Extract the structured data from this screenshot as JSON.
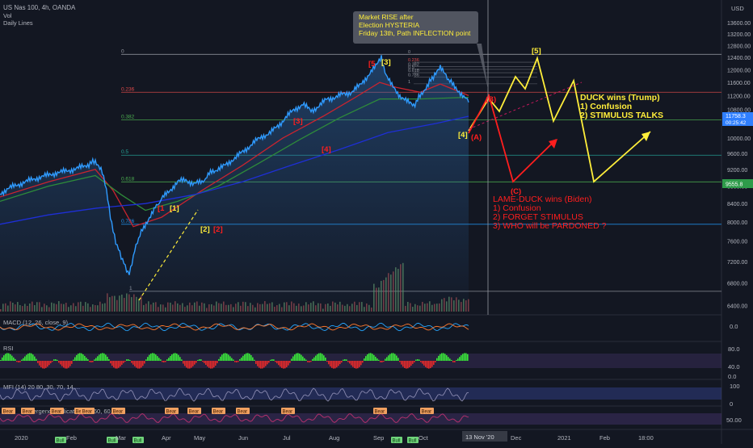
{
  "header": {
    "symbol": "US Nas 100, 4h, OANDA",
    "lines": [
      "Vol",
      "Daily Lines"
    ]
  },
  "colors": {
    "background": "#131722",
    "price": "#2f9bff",
    "ma_red": "#c8242f",
    "ma_green": "#2e8b3a",
    "ma_blue": "#1e2fd6",
    "yellow": "#ffee3a",
    "red": "#ff1e1e",
    "rsi_up": "#39e639",
    "rsi_down": "#e62a2a",
    "mfi": "#8a8ab0",
    "divergence": "#b0306a",
    "axis_text": "#b2b5be"
  },
  "chart_data": [
    {
      "type": "line",
      "pane": "main",
      "title": "US Nas 100, 4h, OANDA",
      "x_tick_labels": [
        "2020",
        "Feb",
        "Mar",
        "Apr",
        "May",
        "Jun",
        "Jul",
        "Aug",
        "Sep",
        "Oct",
        "Dec",
        "2021",
        "Feb",
        "18:00"
      ],
      "cursor_date_label": "13 Nov '20",
      "y_scale": "log",
      "y_unit": "USD",
      "y_ticks": [
        13600,
        13200,
        12800,
        12400,
        12000,
        11600,
        11200,
        10800,
        10400,
        10000,
        9600,
        9200,
        8800,
        8400,
        8000,
        7600,
        7200,
        6800,
        6400
      ],
      "ylim": [
        6300,
        14200
      ],
      "price_labels": [
        "11758.3",
        "00:25:42",
        "9555.8"
      ],
      "series": [
        {
          "kind": "price",
          "points": [
            [
              0,
              8620
            ],
            [
              10,
              8750
            ],
            [
              20,
              8810
            ],
            [
              30,
              8900
            ],
            [
              40,
              8950
            ],
            [
              50,
              9020
            ],
            [
              60,
              9060
            ],
            [
              70,
              9120
            ],
            [
              80,
              9150
            ],
            [
              90,
              9200
            ],
            [
              100,
              9250
            ],
            [
              110,
              9330
            ],
            [
              118,
              9420
            ],
            [
              125,
              9200
            ],
            [
              130,
              8900
            ],
            [
              135,
              8300
            ],
            [
              140,
              7800
            ],
            [
              145,
              7500
            ],
            [
              150,
              7300
            ],
            [
              155,
              7100
            ],
            [
              160,
              6950
            ],
            [
              165,
              7300
            ],
            [
              170,
              7600
            ],
            [
              178,
              7900
            ],
            [
              185,
              8100
            ],
            [
              192,
              8300
            ],
            [
              200,
              8500
            ],
            [
              210,
              8700
            ],
            [
              220,
              8900
            ],
            [
              230,
              8950
            ],
            [
              240,
              8850
            ],
            [
              250,
              8900
            ],
            [
              262,
              9150
            ],
            [
              275,
              9250
            ],
            [
              285,
              9400
            ],
            [
              295,
              9550
            ],
            [
              305,
              9720
            ],
            [
              315,
              9900
            ],
            [
              325,
              10050
            ],
            [
              335,
              10150
            ],
            [
              345,
              10350
            ],
            [
              355,
              10600
            ],
            [
              365,
              10800
            ],
            [
              375,
              10950
            ],
            [
              385,
              10750
            ],
            [
              395,
              10900
            ],
            [
              405,
              11100
            ],
            [
              415,
              11150
            ],
            [
              425,
              11250
            ],
            [
              435,
              11300
            ],
            [
              445,
              11500
            ],
            [
              455,
              11800
            ],
            [
              465,
              12100
            ],
            [
              472,
              12420
            ],
            [
              478,
              11800
            ],
            [
              485,
              11500
            ],
            [
              495,
              11200
            ],
            [
              505,
              11000
            ],
            [
              512,
              10900
            ],
            [
              520,
              11200
            ],
            [
              530,
              11550
            ],
            [
              538,
              11850
            ],
            [
              545,
              12050
            ],
            [
              552,
              11800
            ],
            [
              560,
              11550
            ],
            [
              567,
              11350
            ],
            [
              574,
              11200
            ],
            [
              580,
              11000
            ]
          ]
        },
        {
          "kind": "ma",
          "name": "",
          "color": "#c8242f",
          "points": [
            [
              0,
              8550
            ],
            [
              60,
              8900
            ],
            [
              118,
              9200
            ],
            [
              140,
              8700
            ],
            [
              165,
              7900
            ],
            [
              200,
              8100
            ],
            [
              250,
              8700
            ],
            [
              300,
              9300
            ],
            [
              350,
              10000
            ],
            [
              400,
              10600
            ],
            [
              440,
              11150
            ],
            [
              470,
              11600
            ],
            [
              490,
              11450
            ],
            [
              520,
              11300
            ],
            [
              545,
              11550
            ],
            [
              580,
              11200
            ]
          ]
        },
        {
          "kind": "ma",
          "name": "",
          "color": "#2e8b3a",
          "points": [
            [
              0,
              8450
            ],
            [
              60,
              8800
            ],
            [
              118,
              9050
            ],
            [
              150,
              8600
            ],
            [
              180,
              8250
            ],
            [
              220,
              8450
            ],
            [
              270,
              8800
            ],
            [
              320,
              9350
            ],
            [
              370,
              9950
            ],
            [
              420,
              10550
            ],
            [
              470,
              11100
            ],
            [
              520,
              11100
            ],
            [
              580,
              11150
            ]
          ]
        },
        {
          "kind": "ma",
          "name": "",
          "color": "#1e2fd6",
          "points": [
            [
              0,
              7950
            ],
            [
              60,
              8150
            ],
            [
              120,
              8300
            ],
            [
              180,
              8400
            ],
            [
              240,
              8600
            ],
            [
              300,
              8900
            ],
            [
              360,
              9300
            ],
            [
              420,
              9700
            ],
            [
              480,
              10150
            ],
            [
              540,
              10400
            ],
            [
              580,
              10600
            ]
          ]
        }
      ],
      "fib_levels": [
        {
          "label": "0",
          "price": 12500
        },
        {
          "label": "0.236",
          "price": 11300
        },
        {
          "label": "0.382",
          "price": 10500
        },
        {
          "label": "0.5",
          "price": 9555.8
        },
        {
          "label": "0.618",
          "price": 8900
        },
        {
          "label": "0.786",
          "price": 7950
        },
        {
          "label": "1",
          "price": 6650
        }
      ],
      "annotations": {
        "callout": "Market RISE after\nElection HYSTERIA\nFriday 13th, Path INFLECTION point",
        "wave_labels": [
          {
            "text": "[5",
            "color": "#ff1e1e"
          },
          {
            "text": "[3]",
            "color": "#ffee3a"
          },
          {
            "text": "[3]",
            "color": "#ff1e1e"
          },
          {
            "text": "[4]",
            "color": "#ff1e1e"
          },
          {
            "text": "[1",
            "color": "#ff1e1e"
          },
          {
            "text": "[1]",
            "color": "#ffee3a"
          },
          {
            "text": "[2]",
            "color": "#ffee3a"
          },
          {
            "text": "[2]",
            "color": "#ff1e1e"
          },
          {
            "text": "[4]",
            "color": "#ffee3a"
          },
          {
            "text": "(A)",
            "color": "#ff1e1e"
          },
          {
            "text": "(B)",
            "color": "#ff1e1e"
          },
          {
            "text": "(C)",
            "color": "#ff1e1e"
          },
          {
            "text": "[5]",
            "color": "#ffee3a"
          }
        ],
        "scenario_yellow": [
          "DUCK wins (Trump)",
          "1) Confusion",
          "2) STIMULUS TALKS"
        ],
        "scenario_red": [
          "LAME-DUCK wins (Biden)",
          "1) Confusion",
          "2) FORGET STIMULUS",
          "3) WHO will be PARDONED ?"
        ]
      }
    },
    {
      "type": "line",
      "pane": "macd",
      "title": "MACD (12, 26, close, 9)",
      "y_ticks": [
        "0.0"
      ]
    },
    {
      "type": "bar",
      "pane": "rsi",
      "title": "RSI",
      "y_ticks": [
        "80.0",
        "40.0",
        "0.0"
      ]
    },
    {
      "type": "line",
      "pane": "mfi",
      "title": "MFI (14) 20 80, 30, 70, 14 ...",
      "y_ticks": [
        "100",
        "0"
      ],
      "badges": [
        "Bear",
        "Bull"
      ]
    },
    {
      "type": "line",
      "pane": "divergence",
      "title": "Divergence Indicator (14, 60, 60, ...)",
      "y_ticks": [
        "50.00"
      ]
    }
  ]
}
